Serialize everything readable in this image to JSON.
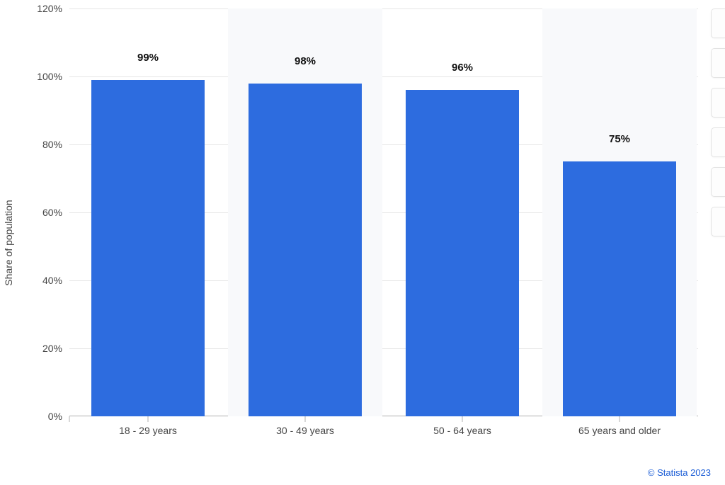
{
  "chart": {
    "type": "bar",
    "y_axis_title": "Share of population",
    "categories": [
      "18 - 29 years",
      "30 - 49 years",
      "50 - 64 years",
      "65 years and older"
    ],
    "values": [
      99,
      98,
      96,
      75
    ],
    "value_labels": [
      "99%",
      "98%",
      "96%",
      "75%"
    ],
    "bar_color": "#2d6cdf",
    "band_bg_color": "#f8f9fb",
    "grid_color": "#e6e6e6",
    "background_color": "#ffffff",
    "y_ticks": [
      0,
      20,
      40,
      60,
      80,
      100,
      120
    ],
    "y_tick_labels": [
      "0%",
      "20%",
      "40%",
      "60%",
      "80%",
      "100%",
      "120%"
    ],
    "y_max": 120,
    "bar_width_ratio": 0.72,
    "band_width_ratio": 0.98,
    "label_fontsize": 14,
    "value_label_fontsize": 15,
    "value_label_fontweight": "700",
    "axis_label_color": "#444444",
    "value_label_color": "#111111"
  },
  "attribution": "© Statista 2023",
  "side_buttons_count": 6
}
